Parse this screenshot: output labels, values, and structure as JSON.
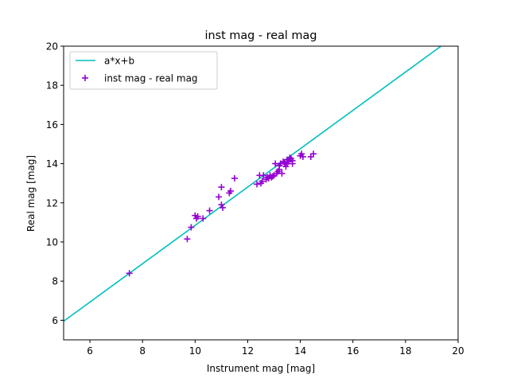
{
  "chart_data": {
    "type": "scatter",
    "title": "inst mag - real mag",
    "xlabel": "Instrument mag [mag]",
    "ylabel": "Real mag [mag]",
    "xlim": [
      5,
      20
    ],
    "ylim": [
      5,
      20
    ],
    "xticks": [
      "6",
      "8",
      "10",
      "12",
      "14",
      "16",
      "18",
      "20"
    ],
    "yticks": [
      "6",
      "8",
      "10",
      "12",
      "14",
      "16",
      "18",
      "20"
    ],
    "grid": false,
    "legend_position": "top-left",
    "series": [
      {
        "name": "a*x+b",
        "kind": "line",
        "color": "#00bfbf",
        "x": [
          5,
          19.35
        ],
        "y": [
          5.95,
          20
        ]
      },
      {
        "name": "inst mag - real mag",
        "kind": "scatter",
        "marker": "plus",
        "color": "#9400d3",
        "x": [
          7.5,
          9.7,
          9.85,
          10.0,
          10.05,
          10.1,
          10.3,
          10.55,
          10.9,
          11.0,
          11.0,
          11.05,
          11.3,
          11.35,
          11.5,
          12.35,
          12.45,
          12.5,
          12.55,
          12.6,
          12.7,
          12.75,
          12.8,
          12.85,
          12.9,
          12.95,
          13.0,
          13.05,
          13.1,
          13.15,
          13.2,
          13.2,
          13.25,
          13.3,
          13.35,
          13.4,
          13.45,
          13.5,
          13.5,
          13.55,
          13.6,
          13.65,
          13.7,
          13.7,
          14.0,
          14.05,
          14.1,
          14.4,
          14.5
        ],
        "y": [
          8.4,
          10.15,
          10.75,
          11.35,
          11.2,
          11.3,
          11.2,
          11.6,
          12.3,
          12.8,
          11.9,
          11.75,
          12.5,
          12.6,
          13.25,
          12.95,
          13.4,
          13.0,
          13.1,
          13.4,
          13.2,
          13.3,
          13.25,
          13.4,
          13.3,
          13.35,
          13.4,
          14.0,
          13.5,
          13.6,
          13.9,
          13.7,
          14.0,
          13.5,
          14.1,
          14.05,
          13.85,
          14.2,
          14.0,
          14.1,
          14.3,
          14.25,
          14.0,
          14.15,
          14.4,
          14.5,
          14.35,
          14.35,
          14.5
        ]
      }
    ]
  }
}
